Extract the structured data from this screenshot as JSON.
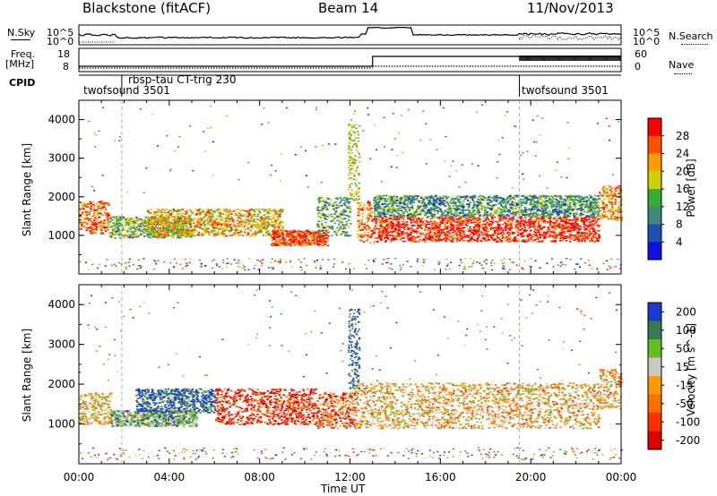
{
  "header": {
    "site": "Blackstone (fitACF)",
    "beam": "Beam 14",
    "date": "11/Nov/2013"
  },
  "top_panels": {
    "nsky_label": "N.Sky",
    "nsky_ticks": [
      "10^5",
      "10^0"
    ],
    "nsearch_label": "N.Search",
    "nsearch_ticks": [
      "10^5",
      "10^0"
    ],
    "freq_label_1": "Freq.",
    "freq_label_2": "[MHz]",
    "freq_ticks": [
      "18",
      "8"
    ],
    "nave_label": "Nave",
    "nave_ticks": [
      "60",
      "0"
    ],
    "cpid_label": "CPID",
    "cpid_segments": [
      "twofsound 3501",
      "rbsp-tau CT-trig 230",
      "twofsound 3501"
    ]
  },
  "chart_data": [
    {
      "type": "heatmap",
      "title": "",
      "xlabel": "Time UT",
      "ylabel": "Slant Range [km]",
      "x_ticks": [
        "00:00",
        "04:00",
        "08:00",
        "12:00",
        "16:00",
        "20:00",
        "00:00"
      ],
      "y_ticks": [
        "1000",
        "2000",
        "3000",
        "4000"
      ],
      "ylim": [
        0,
        4500
      ],
      "colorbar_label": "Power [dB]",
      "colorbar_ticks": [
        "4",
        "8",
        "12",
        "16",
        "20",
        "24",
        "28"
      ],
      "colorbar_colors": [
        "#1010e0",
        "#2050b0",
        "#3e8a78",
        "#35b035",
        "#d0d000",
        "#ff9a00",
        "#ff5000",
        "#ff0000"
      ],
      "scatter_bands": [
        {
          "t0": 0.0,
          "t1": 1.3,
          "r0": 1050,
          "r1": 1900,
          "level": 0.8
        },
        {
          "t0": 1.3,
          "t1": 5.0,
          "r0": 950,
          "r1": 1500,
          "level": 0.45
        },
        {
          "t0": 3.0,
          "t1": 9.0,
          "r0": 1000,
          "r1": 1700,
          "level": 0.65
        },
        {
          "t0": 8.5,
          "t1": 11.0,
          "r0": 750,
          "r1": 1150,
          "level": 0.85
        },
        {
          "t0": 10.5,
          "t1": 12.0,
          "r0": 1000,
          "r1": 2000,
          "level": 0.4
        },
        {
          "t0": 12.3,
          "t1": 13.0,
          "r0": 800,
          "r1": 1900,
          "level": 0.8
        },
        {
          "t0": 13.0,
          "t1": 23.0,
          "r0": 850,
          "r1": 1500,
          "level": 0.92
        },
        {
          "t0": 13.0,
          "t1": 23.0,
          "r0": 1500,
          "r1": 2050,
          "level": 0.35
        },
        {
          "t0": 23.0,
          "t1": 24.0,
          "r0": 1400,
          "r1": 2300,
          "level": 0.75
        }
      ]
    },
    {
      "type": "heatmap",
      "title": "",
      "xlabel": "Time UT",
      "ylabel": "Slant Range [km]",
      "x_ticks": [
        "00:00",
        "04:00",
        "08:00",
        "12:00",
        "16:00",
        "20:00",
        "00:00"
      ],
      "y_ticks": [
        "1000",
        "2000",
        "3000",
        "4000"
      ],
      "ylim": [
        0,
        4500
      ],
      "colorbar_label": "Velocity [m s^-1]",
      "colorbar_ticks": [
        "200",
        "100",
        "50",
        "15",
        "-15",
        "-50",
        "-100",
        "-200"
      ],
      "colorbar_colors": [
        "#1a3ad0",
        "#3a7a50",
        "#60c020",
        "#c8c8c0",
        "#ff9a00",
        "#ff7000",
        "#ff3000",
        "#e00000"
      ],
      "scatter_bands": [
        {
          "t0": 0.0,
          "t1": 1.4,
          "r0": 1000,
          "r1": 1800,
          "level": 0.5
        },
        {
          "t0": 1.4,
          "t1": 5.2,
          "r0": 950,
          "r1": 1350,
          "level": 0.7
        },
        {
          "t0": 2.5,
          "t1": 6.0,
          "r0": 1300,
          "r1": 1900,
          "level": 0.9
        },
        {
          "t0": 6.0,
          "t1": 10.5,
          "r0": 1000,
          "r1": 1900,
          "level": 0.15
        },
        {
          "t0": 10.5,
          "t1": 12.2,
          "r0": 900,
          "r1": 1800,
          "level": 0.25
        },
        {
          "t0": 12.2,
          "t1": 23.0,
          "r0": 900,
          "r1": 2050,
          "level": 0.45
        },
        {
          "t0": 23.0,
          "t1": 24.0,
          "r0": 1400,
          "r1": 2400,
          "level": 0.45
        }
      ]
    }
  ]
}
